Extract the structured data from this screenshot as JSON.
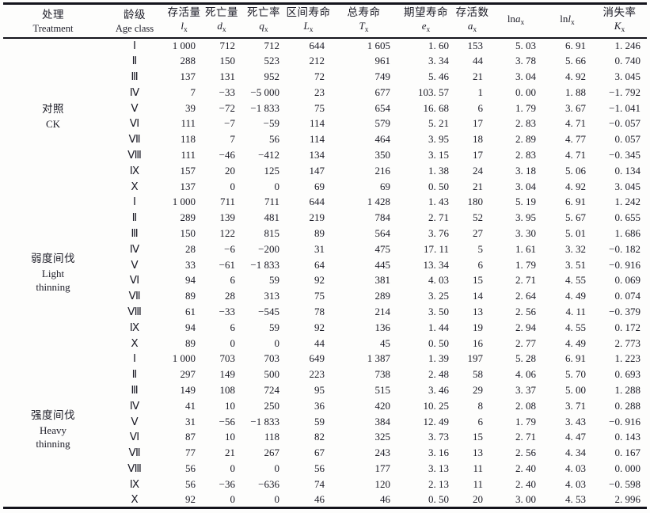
{
  "table": {
    "columns": [
      {
        "id": "treatment",
        "type": "text2",
        "label_zh": "处理",
        "label_en": "Treatment"
      },
      {
        "id": "age_class",
        "type": "text2",
        "label_zh": "龄级",
        "label_en": "Age class"
      },
      {
        "id": "lx",
        "type": "sym2",
        "label_zh": "存活量",
        "symbol": "l",
        "subscript": "x"
      },
      {
        "id": "dx",
        "type": "sym2",
        "label_zh": "死亡量",
        "symbol": "d",
        "subscript": "x"
      },
      {
        "id": "qx",
        "type": "sym2",
        "label_zh": "死亡率",
        "symbol": "q",
        "subscript": "x"
      },
      {
        "id": "Lx",
        "type": "sym2",
        "label_zh": "区间寿命",
        "symbol": "L",
        "subscript": "x"
      },
      {
        "id": "Tx",
        "type": "sym2",
        "label_zh": "总寿命",
        "symbol": "T",
        "subscript": "x"
      },
      {
        "id": "ex",
        "type": "sym2",
        "label_zh": "期望寿命",
        "symbol": "e",
        "subscript": "x"
      },
      {
        "id": "ax",
        "type": "sym2",
        "label_zh": "存活数",
        "symbol": "a",
        "subscript": "x"
      },
      {
        "id": "ln_ax",
        "type": "sym1",
        "prefix": "ln",
        "symbol": "a",
        "subscript": "x"
      },
      {
        "id": "ln_lx",
        "type": "sym1",
        "prefix": "ln",
        "symbol": "l",
        "subscript": "x"
      },
      {
        "id": "Kx",
        "type": "sym2",
        "label_zh": "消失率",
        "symbol": "K",
        "subscript": "x"
      }
    ],
    "groups": [
      {
        "label_lines": [
          "对照",
          "CK"
        ],
        "rows": [
          {
            "age_class": "Ⅰ",
            "lx": "1 000",
            "dx": "712",
            "qx": "712",
            "Lx": "644",
            "Tx": "1 605",
            "ex": "1. 60",
            "ax": "153",
            "ln_ax": "5. 03",
            "ln_lx": "6. 91",
            "Kx": "1. 246"
          },
          {
            "age_class": "Ⅱ",
            "lx": "288",
            "dx": "150",
            "qx": "523",
            "Lx": "212",
            "Tx": "961",
            "ex": "3. 34",
            "ax": "44",
            "ln_ax": "3. 78",
            "ln_lx": "5. 66",
            "Kx": "0. 740"
          },
          {
            "age_class": "Ⅲ",
            "lx": "137",
            "dx": "131",
            "qx": "952",
            "Lx": "72",
            "Tx": "749",
            "ex": "5. 46",
            "ax": "21",
            "ln_ax": "3. 04",
            "ln_lx": "4. 92",
            "Kx": "3. 045"
          },
          {
            "age_class": "Ⅳ",
            "lx": "7",
            "dx": "−33",
            "qx": "−5 000",
            "Lx": "23",
            "Tx": "677",
            "ex": "103. 57",
            "ax": "1",
            "ln_ax": "0. 00",
            "ln_lx": "1. 88",
            "Kx": "−1. 792"
          },
          {
            "age_class": "Ⅴ",
            "lx": "39",
            "dx": "−72",
            "qx": "−1 833",
            "Lx": "75",
            "Tx": "654",
            "ex": "16. 68",
            "ax": "6",
            "ln_ax": "1. 79",
            "ln_lx": "3. 67",
            "Kx": "−1. 041"
          },
          {
            "age_class": "Ⅵ",
            "lx": "111",
            "dx": "−7",
            "qx": "−59",
            "Lx": "114",
            "Tx": "579",
            "ex": "5. 21",
            "ax": "17",
            "ln_ax": "2. 83",
            "ln_lx": "4. 71",
            "Kx": "−0. 057"
          },
          {
            "age_class": "Ⅶ",
            "lx": "118",
            "dx": "7",
            "qx": "56",
            "Lx": "114",
            "Tx": "464",
            "ex": "3. 95",
            "ax": "18",
            "ln_ax": "2. 89",
            "ln_lx": "4. 77",
            "Kx": "0. 057"
          },
          {
            "age_class": "Ⅷ",
            "lx": "111",
            "dx": "−46",
            "qx": "−412",
            "Lx": "134",
            "Tx": "350",
            "ex": "3. 15",
            "ax": "17",
            "ln_ax": "2. 83",
            "ln_lx": "4. 71",
            "Kx": "−0. 345"
          },
          {
            "age_class": "Ⅸ",
            "lx": "157",
            "dx": "20",
            "qx": "125",
            "Lx": "147",
            "Tx": "216",
            "ex": "1. 38",
            "ax": "24",
            "ln_ax": "3. 18",
            "ln_lx": "5. 06",
            "Kx": "0. 134"
          },
          {
            "age_class": "Ⅹ",
            "lx": "137",
            "dx": "0",
            "qx": "0",
            "Lx": "69",
            "Tx": "69",
            "ex": "0. 50",
            "ax": "21",
            "ln_ax": "3. 04",
            "ln_lx": "4. 92",
            "Kx": "3. 045"
          }
        ]
      },
      {
        "label_lines": [
          "弱度间伐",
          "Light",
          "thinning"
        ],
        "rows": [
          {
            "age_class": "Ⅰ",
            "lx": "1 000",
            "dx": "711",
            "qx": "711",
            "Lx": "644",
            "Tx": "1 428",
            "ex": "1. 43",
            "ax": "180",
            "ln_ax": "5. 19",
            "ln_lx": "6. 91",
            "Kx": "1. 242"
          },
          {
            "age_class": "Ⅱ",
            "lx": "289",
            "dx": "139",
            "qx": "481",
            "Lx": "219",
            "Tx": "784",
            "ex": "2. 71",
            "ax": "52",
            "ln_ax": "3. 95",
            "ln_lx": "5. 67",
            "Kx": "0. 655"
          },
          {
            "age_class": "Ⅲ",
            "lx": "150",
            "dx": "122",
            "qx": "815",
            "Lx": "89",
            "Tx": "564",
            "ex": "3. 76",
            "ax": "27",
            "ln_ax": "3. 30",
            "ln_lx": "5. 01",
            "Kx": "1. 686"
          },
          {
            "age_class": "Ⅳ",
            "lx": "28",
            "dx": "−6",
            "qx": "−200",
            "Lx": "31",
            "Tx": "475",
            "ex": "17. 11",
            "ax": "5",
            "ln_ax": "1. 61",
            "ln_lx": "3. 32",
            "Kx": "−0. 182"
          },
          {
            "age_class": "Ⅴ",
            "lx": "33",
            "dx": "−61",
            "qx": "−1 833",
            "Lx": "64",
            "Tx": "445",
            "ex": "13. 34",
            "ax": "6",
            "ln_ax": "1. 79",
            "ln_lx": "3. 51",
            "Kx": "−0. 916"
          },
          {
            "age_class": "Ⅵ",
            "lx": "94",
            "dx": "6",
            "qx": "59",
            "Lx": "92",
            "Tx": "381",
            "ex": "4. 03",
            "ax": "15",
            "ln_ax": "2. 71",
            "ln_lx": "4. 55",
            "Kx": "0. 069"
          },
          {
            "age_class": "Ⅶ",
            "lx": "89",
            "dx": "28",
            "qx": "313",
            "Lx": "75",
            "Tx": "289",
            "ex": "3. 25",
            "ax": "14",
            "ln_ax": "2. 64",
            "ln_lx": "4. 49",
            "Kx": "0. 074"
          },
          {
            "age_class": "Ⅷ",
            "lx": "61",
            "dx": "−33",
            "qx": "−545",
            "Lx": "78",
            "Tx": "214",
            "ex": "3. 50",
            "ax": "13",
            "ln_ax": "2. 56",
            "ln_lx": "4. 11",
            "Kx": "−0. 379"
          },
          {
            "age_class": "Ⅸ",
            "lx": "94",
            "dx": "6",
            "qx": "59",
            "Lx": "92",
            "Tx": "136",
            "ex": "1. 44",
            "ax": "19",
            "ln_ax": "2. 94",
            "ln_lx": "4. 55",
            "Kx": "0. 172"
          },
          {
            "age_class": "Ⅹ",
            "lx": "89",
            "dx": "0",
            "qx": "0",
            "Lx": "44",
            "Tx": "45",
            "ex": "0. 50",
            "ax": "16",
            "ln_ax": "2. 77",
            "ln_lx": "4. 49",
            "Kx": "2. 773"
          }
        ]
      },
      {
        "label_lines": [
          "强度间伐",
          "Heavy",
          "thinning"
        ],
        "rows": [
          {
            "age_class": "Ⅰ",
            "lx": "1 000",
            "dx": "703",
            "qx": "703",
            "Lx": "649",
            "Tx": "1 387",
            "ex": "1. 39",
            "ax": "197",
            "ln_ax": "5. 28",
            "ln_lx": "6. 91",
            "Kx": "1. 223"
          },
          {
            "age_class": "Ⅱ",
            "lx": "297",
            "dx": "149",
            "qx": "500",
            "Lx": "223",
            "Tx": "738",
            "ex": "2. 48",
            "ax": "58",
            "ln_ax": "4. 06",
            "ln_lx": "5. 70",
            "Kx": "0. 693"
          },
          {
            "age_class": "Ⅲ",
            "lx": "149",
            "dx": "108",
            "qx": "724",
            "Lx": "95",
            "Tx": "515",
            "ex": "3. 46",
            "ax": "29",
            "ln_ax": "3. 37",
            "ln_lx": "5. 00",
            "Kx": "1. 288"
          },
          {
            "age_class": "Ⅳ",
            "lx": "41",
            "dx": "10",
            "qx": "250",
            "Lx": "36",
            "Tx": "420",
            "ex": "10. 25",
            "ax": "8",
            "ln_ax": "2. 08",
            "ln_lx": "3. 71",
            "Kx": "0. 288"
          },
          {
            "age_class": "Ⅴ",
            "lx": "31",
            "dx": "−56",
            "qx": "−1 833",
            "Lx": "59",
            "Tx": "384",
            "ex": "12. 49",
            "ax": "6",
            "ln_ax": "1. 79",
            "ln_lx": "3. 43",
            "Kx": "−0. 916"
          },
          {
            "age_class": "Ⅵ",
            "lx": "87",
            "dx": "10",
            "qx": "118",
            "Lx": "82",
            "Tx": "325",
            "ex": "3. 73",
            "ax": "15",
            "ln_ax": "2. 71",
            "ln_lx": "4. 47",
            "Kx": "0. 143"
          },
          {
            "age_class": "Ⅶ",
            "lx": "77",
            "dx": "21",
            "qx": "267",
            "Lx": "67",
            "Tx": "243",
            "ex": "3. 16",
            "ax": "13",
            "ln_ax": "2. 56",
            "ln_lx": "4. 34",
            "Kx": "0. 167"
          },
          {
            "age_class": "Ⅷ",
            "lx": "56",
            "dx": "0",
            "qx": "0",
            "Lx": "56",
            "Tx": "177",
            "ex": "3. 13",
            "ax": "11",
            "ln_ax": "2. 40",
            "ln_lx": "4. 03",
            "Kx": "0. 000"
          },
          {
            "age_class": "Ⅸ",
            "lx": "56",
            "dx": "−36",
            "qx": "−636",
            "Lx": "74",
            "Tx": "120",
            "ex": "2. 13",
            "ax": "11",
            "ln_ax": "2. 40",
            "ln_lx": "4. 03",
            "Kx": "−0. 598"
          },
          {
            "age_class": "Ⅹ",
            "lx": "92",
            "dx": "0",
            "qx": "0",
            "Lx": "46",
            "Tx": "46",
            "ex": "0. 50",
            "ax": "20",
            "ln_ax": "3. 00",
            "ln_lx": "4. 53",
            "Kx": "2. 996"
          }
        ]
      }
    ]
  }
}
